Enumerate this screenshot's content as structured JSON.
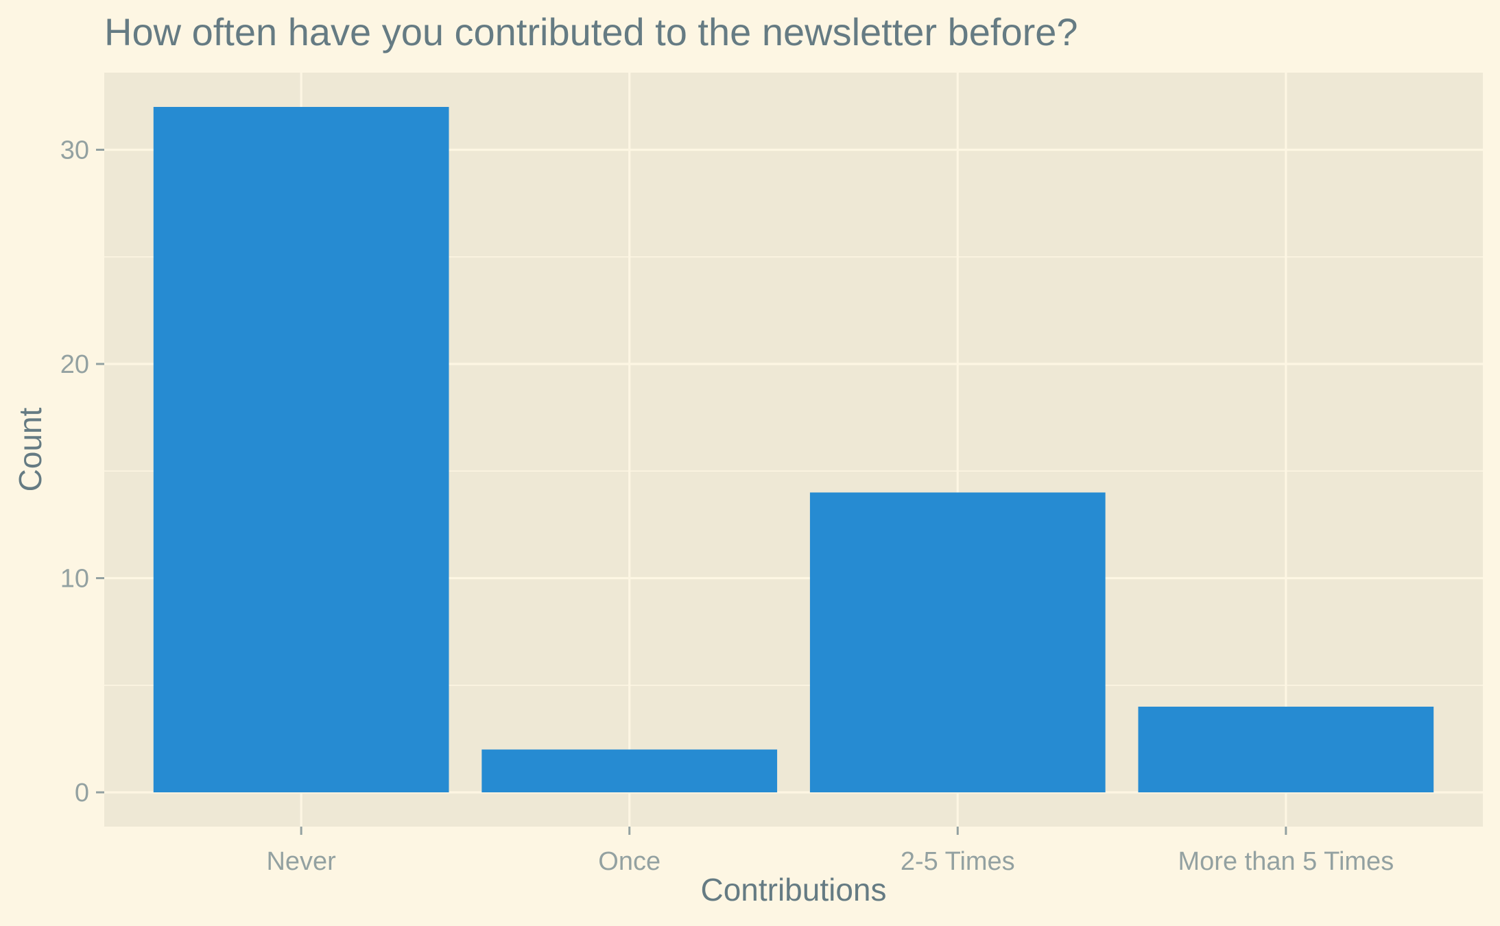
{
  "chart_data": {
    "type": "bar",
    "title": "How often have you contributed to the newsletter before?",
    "xlabel": "Contributions",
    "ylabel": "Count",
    "categories": [
      "Never",
      "Once",
      "2-5 Times",
      "More than 5 Times"
    ],
    "values": [
      32,
      2,
      14,
      4
    ],
    "ylim": [
      -1.6,
      33.6
    ],
    "yticks": [
      0,
      10,
      20,
      30
    ],
    "grid": true,
    "legend": "none",
    "colors": {
      "background": "#fdf6e3",
      "panel": "#eee8d5",
      "grid": "#fdf6e3",
      "bar": "#268bd2",
      "text": "#657b83",
      "tick_text": "#93a1a1"
    }
  }
}
